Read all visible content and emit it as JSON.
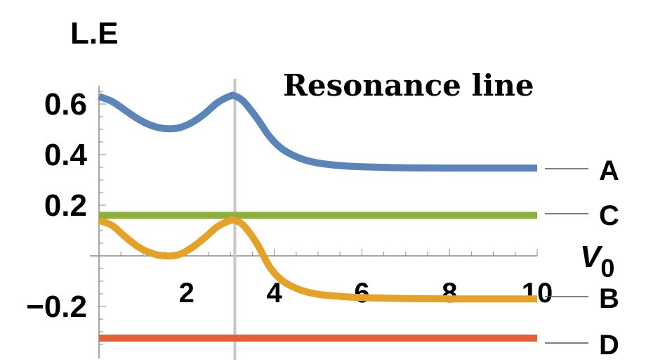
{
  "chart_data": {
    "type": "line",
    "ylabel": "L.E",
    "xlabel_main": "V",
    "xlabel_sub": "0",
    "xlim": [
      0,
      10
    ],
    "ylim": [
      -0.35,
      0.65
    ],
    "x_ticks": [
      {
        "value": 2,
        "label": "2"
      },
      {
        "value": 4,
        "label": "4"
      },
      {
        "value": 6,
        "label": "6"
      },
      {
        "value": 8,
        "label": "8"
      },
      {
        "value": 10,
        "label": "10"
      }
    ],
    "y_ticks": [
      {
        "value": 0.6,
        "label": "0.6"
      },
      {
        "value": 0.4,
        "label": "0.4"
      },
      {
        "value": 0.2,
        "label": "0.2"
      },
      {
        "value": -0.2,
        "label": "−0.2"
      }
    ],
    "grid": false,
    "resonance": {
      "x": 3.1,
      "label": "Resonance line",
      "color": "#c8c8c8"
    },
    "series": [
      {
        "name": "A",
        "color": "#5b84b9",
        "x": [
          0,
          0.3,
          0.6,
          0.9,
          1.2,
          1.5,
          1.8,
          2.1,
          2.4,
          2.7,
          3.0,
          3.1,
          3.3,
          3.6,
          3.9,
          4.2,
          4.6,
          5.0,
          5.5,
          6.0,
          7.0,
          8.0,
          9.0,
          10.0
        ],
        "y": [
          0.63,
          0.61,
          0.575,
          0.54,
          0.515,
          0.503,
          0.505,
          0.525,
          0.56,
          0.605,
          0.632,
          0.632,
          0.61,
          0.545,
          0.47,
          0.42,
          0.385,
          0.367,
          0.357,
          0.352,
          0.348,
          0.347,
          0.347,
          0.347
        ]
      },
      {
        "name": "C",
        "color": "#8eb03b",
        "x": [
          0,
          10
        ],
        "y": [
          0.16,
          0.16
        ]
      },
      {
        "name": "B",
        "color": "#e5a229",
        "x": [
          0,
          0.3,
          0.6,
          0.9,
          1.2,
          1.5,
          1.8,
          2.1,
          2.4,
          2.7,
          3.0,
          3.1,
          3.3,
          3.6,
          3.9,
          4.2,
          4.6,
          5.0,
          5.5,
          6.0,
          7.0,
          8.0,
          9.0,
          10.0
        ],
        "y": [
          0.14,
          0.12,
          0.075,
          0.035,
          0.01,
          0.0,
          0.004,
          0.03,
          0.07,
          0.115,
          0.14,
          0.14,
          0.12,
          0.05,
          -0.045,
          -0.1,
          -0.135,
          -0.152,
          -0.16,
          -0.165,
          -0.169,
          -0.17,
          -0.17,
          -0.17
        ]
      },
      {
        "name": "D",
        "color": "#e2613a",
        "x": [
          0,
          10
        ],
        "y": [
          -0.325,
          -0.325
        ]
      }
    ]
  }
}
